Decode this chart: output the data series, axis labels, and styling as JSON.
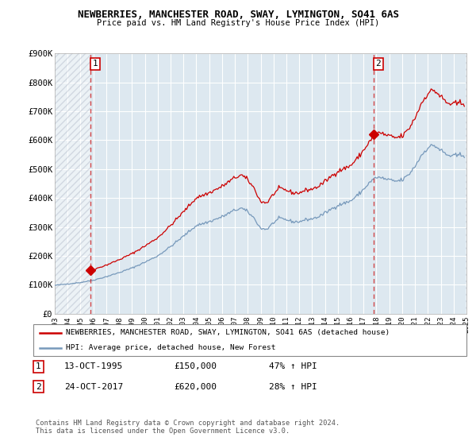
{
  "title": "NEWBERRIES, MANCHESTER ROAD, SWAY, LYMINGTON, SO41 6AS",
  "subtitle": "Price paid vs. HM Land Registry's House Price Index (HPI)",
  "legend_line1": "NEWBERRIES, MANCHESTER ROAD, SWAY, LYMINGTON, SO41 6AS (detached house)",
  "legend_line2": "HPI: Average price, detached house, New Forest",
  "annotation1": [
    "1",
    "13-OCT-1995",
    "£150,000",
    "47% ↑ HPI"
  ],
  "annotation2": [
    "2",
    "24-OCT-2017",
    "£620,000",
    "28% ↑ HPI"
  ],
  "footer": "Contains HM Land Registry data © Crown copyright and database right 2024.\nThis data is licensed under the Open Government Licence v3.0.",
  "sale1_year": 1995.79,
  "sale1_price": 150000,
  "sale2_year": 2017.79,
  "sale2_price": 620000,
  "red_color": "#cc0000",
  "blue_color": "#7799bb",
  "ylim": [
    0,
    900000
  ],
  "xlim": [
    1993,
    2025
  ],
  "yticks": [
    0,
    100000,
    200000,
    300000,
    400000,
    500000,
    600000,
    700000,
    800000,
    900000
  ],
  "xticks": [
    1993,
    1994,
    1995,
    1996,
    1997,
    1998,
    1999,
    2000,
    2001,
    2002,
    2003,
    2004,
    2005,
    2006,
    2007,
    2008,
    2009,
    2010,
    2011,
    2012,
    2013,
    2014,
    2015,
    2016,
    2017,
    2018,
    2019,
    2020,
    2021,
    2022,
    2023,
    2024,
    2025
  ],
  "ytick_labels": [
    "£0",
    "£100K",
    "£200K",
    "£300K",
    "£400K",
    "£500K",
    "£600K",
    "£700K",
    "£800K",
    "£900K"
  ],
  "bg_color": "#ffffff",
  "plot_bg": "#dde8f0",
  "grid_color": "#ffffff"
}
